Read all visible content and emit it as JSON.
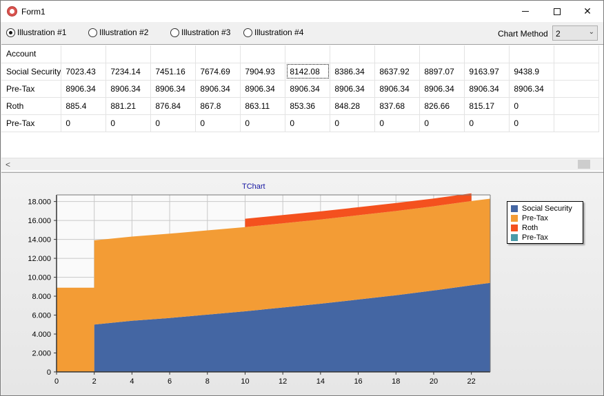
{
  "window": {
    "title": "Form1"
  },
  "toolbar": {
    "radios": [
      {
        "label": "Illustration #1",
        "checked": true
      },
      {
        "label": "Illustration #2",
        "checked": false
      },
      {
        "label": "Illustration #3",
        "checked": false
      },
      {
        "label": "Illustration #4",
        "checked": false
      }
    ],
    "chart_method_label": "Chart Method",
    "chart_method_value": "2"
  },
  "grid": {
    "rows": [
      {
        "label": "Account",
        "cells": [
          "",
          "",
          "",
          "",
          "",
          "",
          "",
          "",
          "",
          "",
          ""
        ]
      },
      {
        "label": "Social Security",
        "cells": [
          "7023.43",
          "7234.14",
          "7451.16",
          "7674.69",
          "7904.93",
          "8142.08",
          "8386.34",
          "8637.92",
          "8897.07",
          "9163.97",
          "9438.9"
        ]
      },
      {
        "label": "Pre-Tax",
        "cells": [
          "8906.34",
          "8906.34",
          "8906.34",
          "8906.34",
          "8906.34",
          "8906.34",
          "8906.34",
          "8906.34",
          "8906.34",
          "8906.34",
          "8906.34"
        ]
      },
      {
        "label": "Roth",
        "cells": [
          "885.4",
          "881.21",
          "876.84",
          "867.8",
          "863.11",
          "853.36",
          "848.28",
          "837.68",
          "826.66",
          "815.17",
          "0"
        ]
      },
      {
        "label": "Pre-Tax",
        "cells": [
          "0",
          "0",
          "0",
          "0",
          "0",
          "0",
          "0",
          "0",
          "0",
          "0",
          "0"
        ]
      }
    ]
  },
  "chart_data": {
    "type": "area",
    "title": "TChart",
    "stacked": true,
    "x": [
      0,
      2,
      2,
      4,
      6,
      8,
      10,
      10,
      12,
      14,
      16,
      18,
      20,
      22,
      22,
      23
    ],
    "xlim": [
      0,
      23
    ],
    "ylim": [
      0,
      18700
    ],
    "xticks": [
      0,
      2,
      4,
      6,
      8,
      10,
      12,
      14,
      16,
      18,
      20,
      22
    ],
    "yticks": [
      0,
      2000,
      4000,
      6000,
      8000,
      10000,
      12000,
      14000,
      16000,
      18000
    ],
    "ytick_labels": [
      "0",
      "2.000",
      "4.000",
      "6.000",
      "8.000",
      "10.000",
      "12.000",
      "14.000",
      "16.000",
      "18.000"
    ],
    "series": [
      {
        "name": "Social Security",
        "color": "#4466a3",
        "values": [
          0,
          0,
          5000,
          5400,
          5700,
          6050,
          6400,
          6400,
          6800,
          7200,
          7650,
          8100,
          8600,
          9150,
          9150,
          9400
        ]
      },
      {
        "name": "Pre-Tax",
        "color": "#f39c35",
        "values": [
          8900,
          8900,
          8900,
          8900,
          8900,
          8900,
          8900,
          8900,
          8900,
          8900,
          8900,
          8900,
          8900,
          8900,
          8900,
          8900
        ]
      },
      {
        "name": "Roth",
        "color": "#f4511e",
        "values": [
          0,
          0,
          0,
          0,
          0,
          0,
          0,
          880,
          870,
          860,
          850,
          840,
          820,
          810,
          0,
          0
        ]
      },
      {
        "name": "Pre-Tax",
        "color": "#4a9aa8",
        "values": [
          0,
          0,
          0,
          0,
          0,
          0,
          0,
          0,
          0,
          0,
          0,
          0,
          0,
          0,
          0,
          0
        ]
      }
    ],
    "legend_position": "right",
    "grid": true
  }
}
